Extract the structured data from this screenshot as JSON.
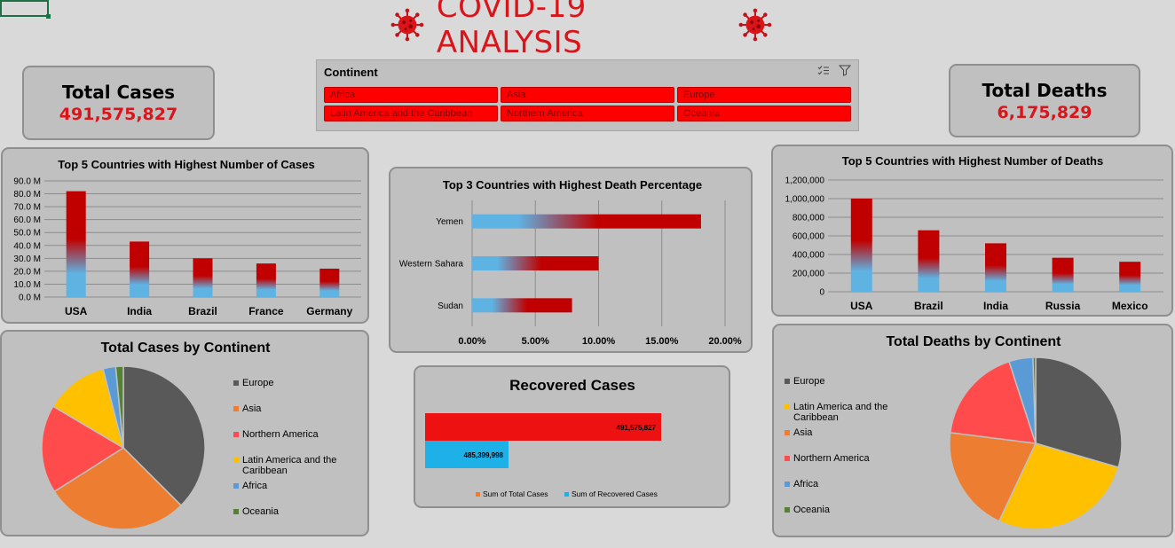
{
  "title": "COVID-19 ANALYSIS",
  "kpis": {
    "total_cases": {
      "label": "Total Cases",
      "value": "491,575,827"
    },
    "total_deaths": {
      "label": "Total Deaths",
      "value": "6,175,829"
    }
  },
  "slicer": {
    "header": "Continent",
    "items": [
      "Africa",
      "Asia",
      "Europe",
      "Latin America and the Caribbean",
      "Northern America",
      "Oceania"
    ]
  },
  "colors": {
    "accent_red": "#d9141a",
    "bar_red": "#c00000",
    "bar_blue": "#5fb3e3",
    "panel": "#c0c0c0"
  },
  "chart_data": [
    {
      "id": "top5_cases",
      "type": "bar",
      "title": "Top 5 Countries with Highest Number of Cases",
      "categories": [
        "USA",
        "India",
        "Brazil",
        "France",
        "Germany"
      ],
      "values": [
        82.0,
        43.0,
        30.0,
        26.0,
        22.0
      ],
      "ylim": [
        0,
        90
      ],
      "yticks": [
        "0.0 M",
        "10.0 M",
        "20.0 M",
        "30.0 M",
        "40.0 M",
        "50.0 M",
        "60.0 M",
        "70.0 M",
        "80.0 M",
        "90.0 M"
      ],
      "grid": true
    },
    {
      "id": "top3_death_pct",
      "type": "bar",
      "orientation": "horizontal",
      "title": "Top 3 Countries with Highest Death Percentage",
      "categories": [
        "Yemen",
        "Western Sahara",
        "Sudan"
      ],
      "values": [
        18.1,
        10.0,
        7.9
      ],
      "xlim": [
        0,
        20
      ],
      "xticks": [
        "0.00%",
        "5.00%",
        "10.00%",
        "15.00%",
        "20.00%"
      ],
      "grid": true
    },
    {
      "id": "top5_deaths",
      "type": "bar",
      "title": "Top 5 Countries with Highest Number of Deaths",
      "categories": [
        "USA",
        "Brazil",
        "India",
        "Russia",
        "Mexico"
      ],
      "values": [
        1000000,
        660000,
        520000,
        365000,
        322000
      ],
      "ylim": [
        0,
        1200000
      ],
      "yticks": [
        "0",
        "200,000",
        "400,000",
        "600,000",
        "800,000",
        "1,000,000",
        "1,200,000"
      ],
      "grid": true
    },
    {
      "id": "cases_by_continent",
      "type": "pie",
      "title": "Total Cases by Continent",
      "slices": [
        {
          "label": "Europe",
          "value": 37.5,
          "color": "#595959"
        },
        {
          "label": "Asia",
          "value": 28.5,
          "color": "#ed7d31"
        },
        {
          "label": "Northern America",
          "value": 17.5,
          "color": "#ff4b4b"
        },
        {
          "label": "Latin America and the Caribbean",
          "value": 12.5,
          "color": "#ffc000"
        },
        {
          "label": "Africa",
          "value": 2.5,
          "color": "#5b9bd5"
        },
        {
          "label": "Oceania",
          "value": 1.5,
          "color": "#548235"
        }
      ],
      "legend": "right"
    },
    {
      "id": "recovered_cases",
      "type": "bar",
      "orientation": "horizontal",
      "title": "Recovered Cases",
      "series": [
        {
          "name": "Sum of Total Cases",
          "value": 491575827,
          "label": "491,575,827",
          "color": "#ee1111",
          "legend_color": "#ed7d31"
        },
        {
          "name": "Sum of Recovered Cases",
          "value": 485399998,
          "label": "485,399,998",
          "color": "#1eb1e8",
          "legend_color": "#1eb1e8"
        }
      ],
      "legend": "bottom"
    },
    {
      "id": "deaths_by_continent",
      "type": "pie",
      "title": "Total Deaths by Continent",
      "slices": [
        {
          "label": "Europe",
          "value": 29.5,
          "color": "#595959"
        },
        {
          "label": "Latin America and the Caribbean",
          "value": 27.5,
          "color": "#ffc000"
        },
        {
          "label": "Asia",
          "value": 20.0,
          "color": "#ed7d31"
        },
        {
          "label": "Northern America",
          "value": 18.0,
          "color": "#ff4b4b"
        },
        {
          "label": "Africa",
          "value": 4.5,
          "color": "#5b9bd5"
        },
        {
          "label": "Oceania",
          "value": 0.5,
          "color": "#548235"
        }
      ],
      "legend": "left"
    }
  ]
}
